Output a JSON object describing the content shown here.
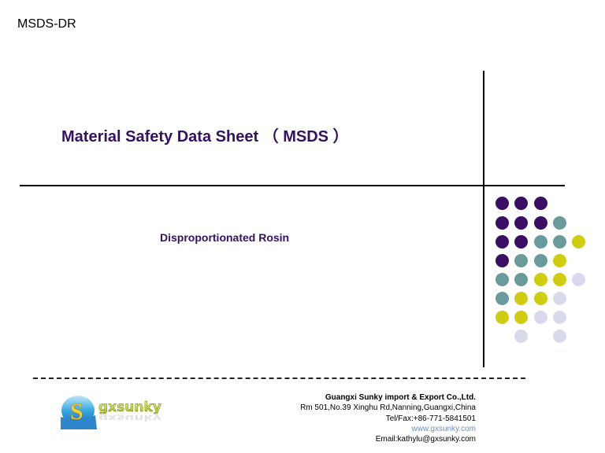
{
  "header": {
    "doc_code": "MSDS-DR"
  },
  "title": {
    "main": "Material Safety Data Sheet （ MSDS ）"
  },
  "subtitle": {
    "product": "Disproportionated Rosin"
  },
  "colors": {
    "title": "#33135e",
    "purple": "#3a0e63",
    "teal": "#6b9a9c",
    "yellow": "#cfcc12",
    "lavender": "#d9d9ec",
    "link": "#6c8fc7"
  },
  "dot_grid": {
    "rows": [
      [
        "purple",
        "purple",
        "purple",
        null,
        null
      ],
      [
        "purple",
        "purple",
        "purple",
        "teal",
        null
      ],
      [
        "purple",
        "purple",
        "teal",
        "teal",
        "yellow"
      ],
      [
        "purple",
        "teal",
        "teal",
        "yellow",
        null
      ],
      [
        "teal",
        "teal",
        "yellow",
        "yellow",
        "lavender"
      ],
      [
        "teal",
        "yellow",
        "yellow",
        "lavender",
        null
      ],
      [
        "yellow",
        "yellow",
        "lavender",
        "lavender",
        null
      ],
      [
        null,
        "lavender",
        null,
        "lavender",
        null
      ]
    ]
  },
  "footer": {
    "logo_text": "gxsunky",
    "logo_letter": "S",
    "company_name": "Guangxi Sunky import & Export Co.,Ltd.",
    "address": "Rm 501,No.39 Xinghu Rd,Nanning,Guangxi,China",
    "telfax": "Tel/Fax:+86-771-5841501",
    "website": "www.gxsunky.com",
    "email": "Email:kathylu@gxsunky.com"
  }
}
